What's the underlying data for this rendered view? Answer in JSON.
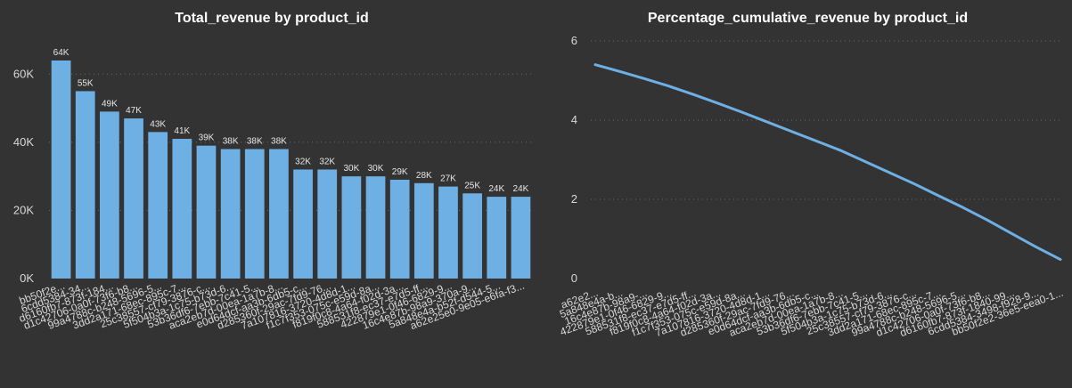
{
  "chart_data": [
    {
      "type": "bar",
      "title": "Total_revenue by product_id",
      "color": "#6fb0e4",
      "ylim": [
        0,
        70000
      ],
      "yticks": [
        0,
        20000,
        40000,
        60000
      ],
      "ytick_labels": [
        "0K",
        "20K",
        "40K",
        "60K"
      ],
      "grid": true,
      "categories": [
        "bb50f2e...",
        "6cdd5384-34...",
        "d6160fb7-873f-184...",
        "d1c42706-0a0f-73f6-b8...",
        "99a4788c-b248-5696-5...",
        "3dd2a171-68ec-895c-7...",
        "25c38557-cf79-3876-c...",
        "5f504b3a-1c75-b73d-6...",
        "53b36df6-7ebb-7c41-5...",
        "aca2eb7d-00ea-1a7b-8...",
        "e0d64dcf-aa3b-6db5-c...",
        "d285360f-29ac-7fd9-76...",
        "7a107816-3720-4d8d-1...",
        "f1c7f353-075c-e59d-8a...",
        "f819f0c8-4a64-f02d-3a...",
        "588531f8-ec37-e7d5-ff...",
        "422879e1-0f46-6829-9...",
        "16c4e87b-98a9-370a-9...",
        "5a848e4a-b52f-d544-5...",
        "a62e25e0-9e05-e6fa-f3..."
      ],
      "values": [
        64000,
        55000,
        49000,
        47000,
        43000,
        41000,
        39000,
        38000,
        38000,
        38000,
        32000,
        32000,
        30000,
        30000,
        29000,
        28000,
        27000,
        25000,
        24000,
        24000
      ],
      "data_labels": [
        "64K",
        "55K",
        "49K",
        "47K",
        "43K",
        "41K",
        "39K",
        "38K",
        "38K",
        "38K",
        "32K",
        "32K",
        "30K",
        "30K",
        "29K",
        "28K",
        "27K",
        "25K",
        "24K",
        "24K"
      ]
    },
    {
      "type": "line",
      "title": "Percentage_cumulative_revenue by product_id",
      "color": "#6fb0e4",
      "ylim": [
        0,
        6
      ],
      "yticks": [
        0,
        2,
        4,
        6
      ],
      "ytick_labels": [
        "0",
        "2",
        "4",
        "6"
      ],
      "grid": true,
      "categories": [
        "a62e2...",
        "5a848e4a-b...",
        "16c4e87b-98a9-...",
        "422879e1-0f46-6829-9...",
        "588531f8-ec37-e7d5-ff...",
        "f819f0c8-4a64-f02d-3a...",
        "f1c7f353-075c-e59d-8a...",
        "7a107816-3720-4d8d-1...",
        "d285360f-29ac-7fd9-76...",
        "e0d64dcf-aa3b-6db5-c...",
        "aca2eb7d-00ea-1a7b-8...",
        "53b36df6-7ebb-7c41-5...",
        "5f504b3a-1c75-b73d-6...",
        "25c38557-cf79-3876-c...",
        "3dd2a171-68ec-895c-7...",
        "99a4788c-b248-5696-5...",
        "d1c42706-0a0f-73f6-b8...",
        "d6160fb7-873f-1840-99...",
        "6cdd5384-3498-f928-9...",
        "bb50f2e2-36e5-eea0-1..."
      ],
      "values": [
        5.4,
        5.23,
        5.05,
        4.86,
        4.65,
        4.43,
        4.2,
        3.96,
        3.72,
        3.48,
        3.24,
        2.96,
        2.68,
        2.4,
        2.1,
        1.8,
        1.48,
        1.14,
        0.8,
        0.48
      ]
    }
  ]
}
